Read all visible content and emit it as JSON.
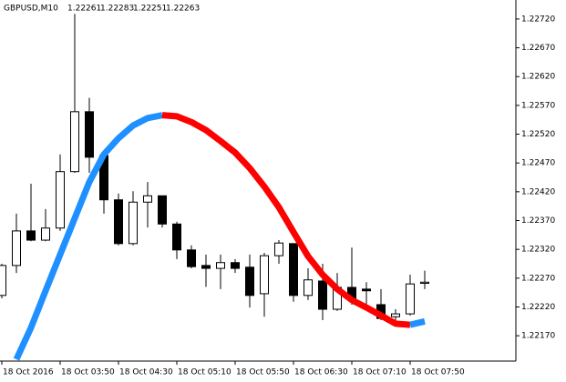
{
  "chart_data": {
    "type": "candlestick",
    "symbol": "GBPUSD,M10",
    "header_values": [
      1.22261,
      1.22283,
      1.22251,
      1.22263
    ],
    "categories": [
      "18 Oct 2016",
      null,
      null,
      null,
      "18 Oct 03:50",
      null,
      null,
      null,
      "18 Oct 04:30",
      null,
      null,
      null,
      "18 Oct 05:10",
      null,
      null,
      null,
      "18 Oct 05:50",
      null,
      null,
      null,
      "18 Oct 06:30",
      null,
      null,
      null,
      "18 Oct 07:10",
      null,
      null,
      null,
      "18 Oct 07:50",
      null
    ],
    "open": [
      1.2224,
      1.22292,
      1.22352,
      1.22336,
      1.22357,
      1.22455,
      1.22559,
      1.22483,
      1.22406,
      1.2233,
      1.22402,
      1.22413,
      1.22364,
      1.22319,
      1.22292,
      1.22287,
      1.22297,
      1.22289,
      1.22243,
      1.22309,
      1.2233,
      1.2224,
      1.22265,
      1.22216,
      1.22254,
      1.22251,
      1.22224,
      1.22203,
      1.22208,
      1.22261
    ],
    "high": [
      1.22295,
      1.22382,
      1.22434,
      1.2239,
      1.22485,
      1.22729,
      1.22583,
      1.22492,
      1.22417,
      1.22421,
      1.22437,
      1.22413,
      1.22368,
      1.22327,
      1.22311,
      1.22311,
      1.22303,
      1.22311,
      1.22314,
      1.22336,
      1.2233,
      1.22287,
      1.22295,
      1.22279,
      1.22323,
      1.22263,
      1.22251,
      1.22216,
      1.22276,
      1.22283
    ],
    "low": [
      1.22235,
      1.22279,
      1.22334,
      1.22334,
      1.22352,
      1.22453,
      1.22453,
      1.22382,
      1.22327,
      1.22327,
      1.22358,
      1.22358,
      1.22303,
      1.22287,
      1.22255,
      1.22251,
      1.22279,
      1.22219,
      1.22203,
      1.22295,
      1.22229,
      1.22232,
      1.22197,
      1.22213,
      1.22224,
      1.22224,
      1.22197,
      1.22197,
      1.22205,
      1.22251
    ],
    "close": [
      1.22292,
      1.22352,
      1.22336,
      1.22357,
      1.22455,
      1.22559,
      1.2248,
      1.22406,
      1.2233,
      1.22402,
      1.22413,
      1.22364,
      1.22319,
      1.2229,
      1.22287,
      1.22297,
      1.22287,
      1.2224,
      1.22309,
      1.22331,
      1.2224,
      1.22267,
      1.22216,
      1.22254,
      1.22232,
      1.22248,
      1.222,
      1.22208,
      1.2226,
      1.22263
    ],
    "up_color": "#ffffff",
    "down_color": "#000000",
    "ma": {
      "values": [
        null,
        1.22129,
        1.22184,
        1.22248,
        1.22311,
        1.22374,
        1.22437,
        1.22485,
        1.22513,
        1.22535,
        1.22548,
        1.22553,
        1.22551,
        1.22541,
        1.22527,
        1.22508,
        1.22488,
        1.22461,
        1.22429,
        1.22393,
        1.2235,
        1.22308,
        1.22276,
        1.22251,
        1.22232,
        1.22219,
        1.22205,
        1.22191,
        1.22189,
        1.22195
      ],
      "rising_color": "#1e90ff",
      "falling_color": "#ff0000"
    },
    "ylim": [
      1.22126,
      1.22753
    ],
    "yticks": [
      {
        "value": 1.2217,
        "label": "1.22170"
      },
      {
        "value": 1.2222,
        "label": "1.22220"
      },
      {
        "value": 1.2227,
        "label": "1.22270"
      },
      {
        "value": 1.2232,
        "label": "1.22320"
      },
      {
        "value": 1.2237,
        "label": "1.22370"
      },
      {
        "value": 1.2242,
        "label": "1.22420"
      },
      {
        "value": 1.2247,
        "label": "1.22470"
      },
      {
        "value": 1.2252,
        "label": "1.22520"
      },
      {
        "value": 1.2257,
        "label": "1.22570"
      },
      {
        "value": 1.2262,
        "label": "1.22620"
      },
      {
        "value": 1.2267,
        "label": "1.22670"
      },
      {
        "value": 1.2272,
        "label": "1.22720"
      }
    ]
  }
}
